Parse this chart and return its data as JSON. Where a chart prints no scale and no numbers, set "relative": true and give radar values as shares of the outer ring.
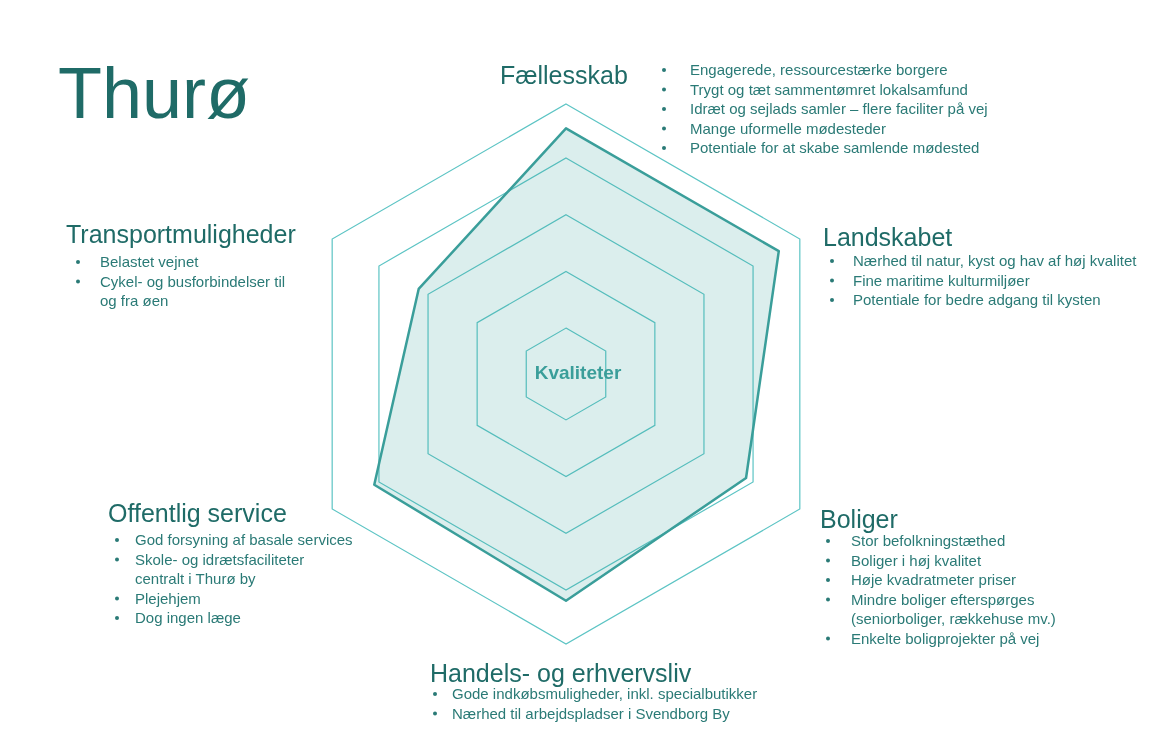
{
  "chart_data": {
    "type": "radar",
    "title": "Thurø",
    "relative": true,
    "grid": true,
    "categories": [
      "Fællesskab",
      "Landskabet",
      "Boliger",
      "Handels- og erhvervsliv",
      "Offentlig service",
      "Transportmuligheder"
    ],
    "series": [
      {
        "color": "#3a9e9a",
        "values": [
          0.91,
          0.91,
          0.77,
          0.84,
          0.82,
          0.63
        ]
      }
    ],
    "annotations": [
      "Kvaliteter",
      "Engagerede, ressourcestærke borgere",
      "Trygt og tæt sammentømret lokalsamfund",
      "Idræt og sejlads samler – flere faciliter på vej",
      "Mange uformelle mødesteder",
      "Potentiale for at skabe samlende mødested",
      "Nærhed til natur, kyst og hav af høj kvalitet",
      "Fine maritime kulturmiljøer",
      "Potentiale for bedre adgang til kysten",
      "Stor befolkningstæthed",
      "Boliger i høj kvalitet",
      "Høje kvadratmeter priser",
      "Mindre boliger efterspørges (seniorboliger, rækkehuse mv.)",
      "Enkelte boligprojekter på vej",
      "Gode indkøbsmuligheder, inkl. specialbutikker",
      "Nærhed til arbejdspladser i Svendborg By",
      "God forsyning af basale services",
      "Skole- og idrætsfaciliteter centralt i Thurø by",
      "Plejehjem",
      "Dog ingen læge",
      "Belastet vejnet",
      "Cykel- og busforbindelser til og fra øen"
    ]
  }
}
